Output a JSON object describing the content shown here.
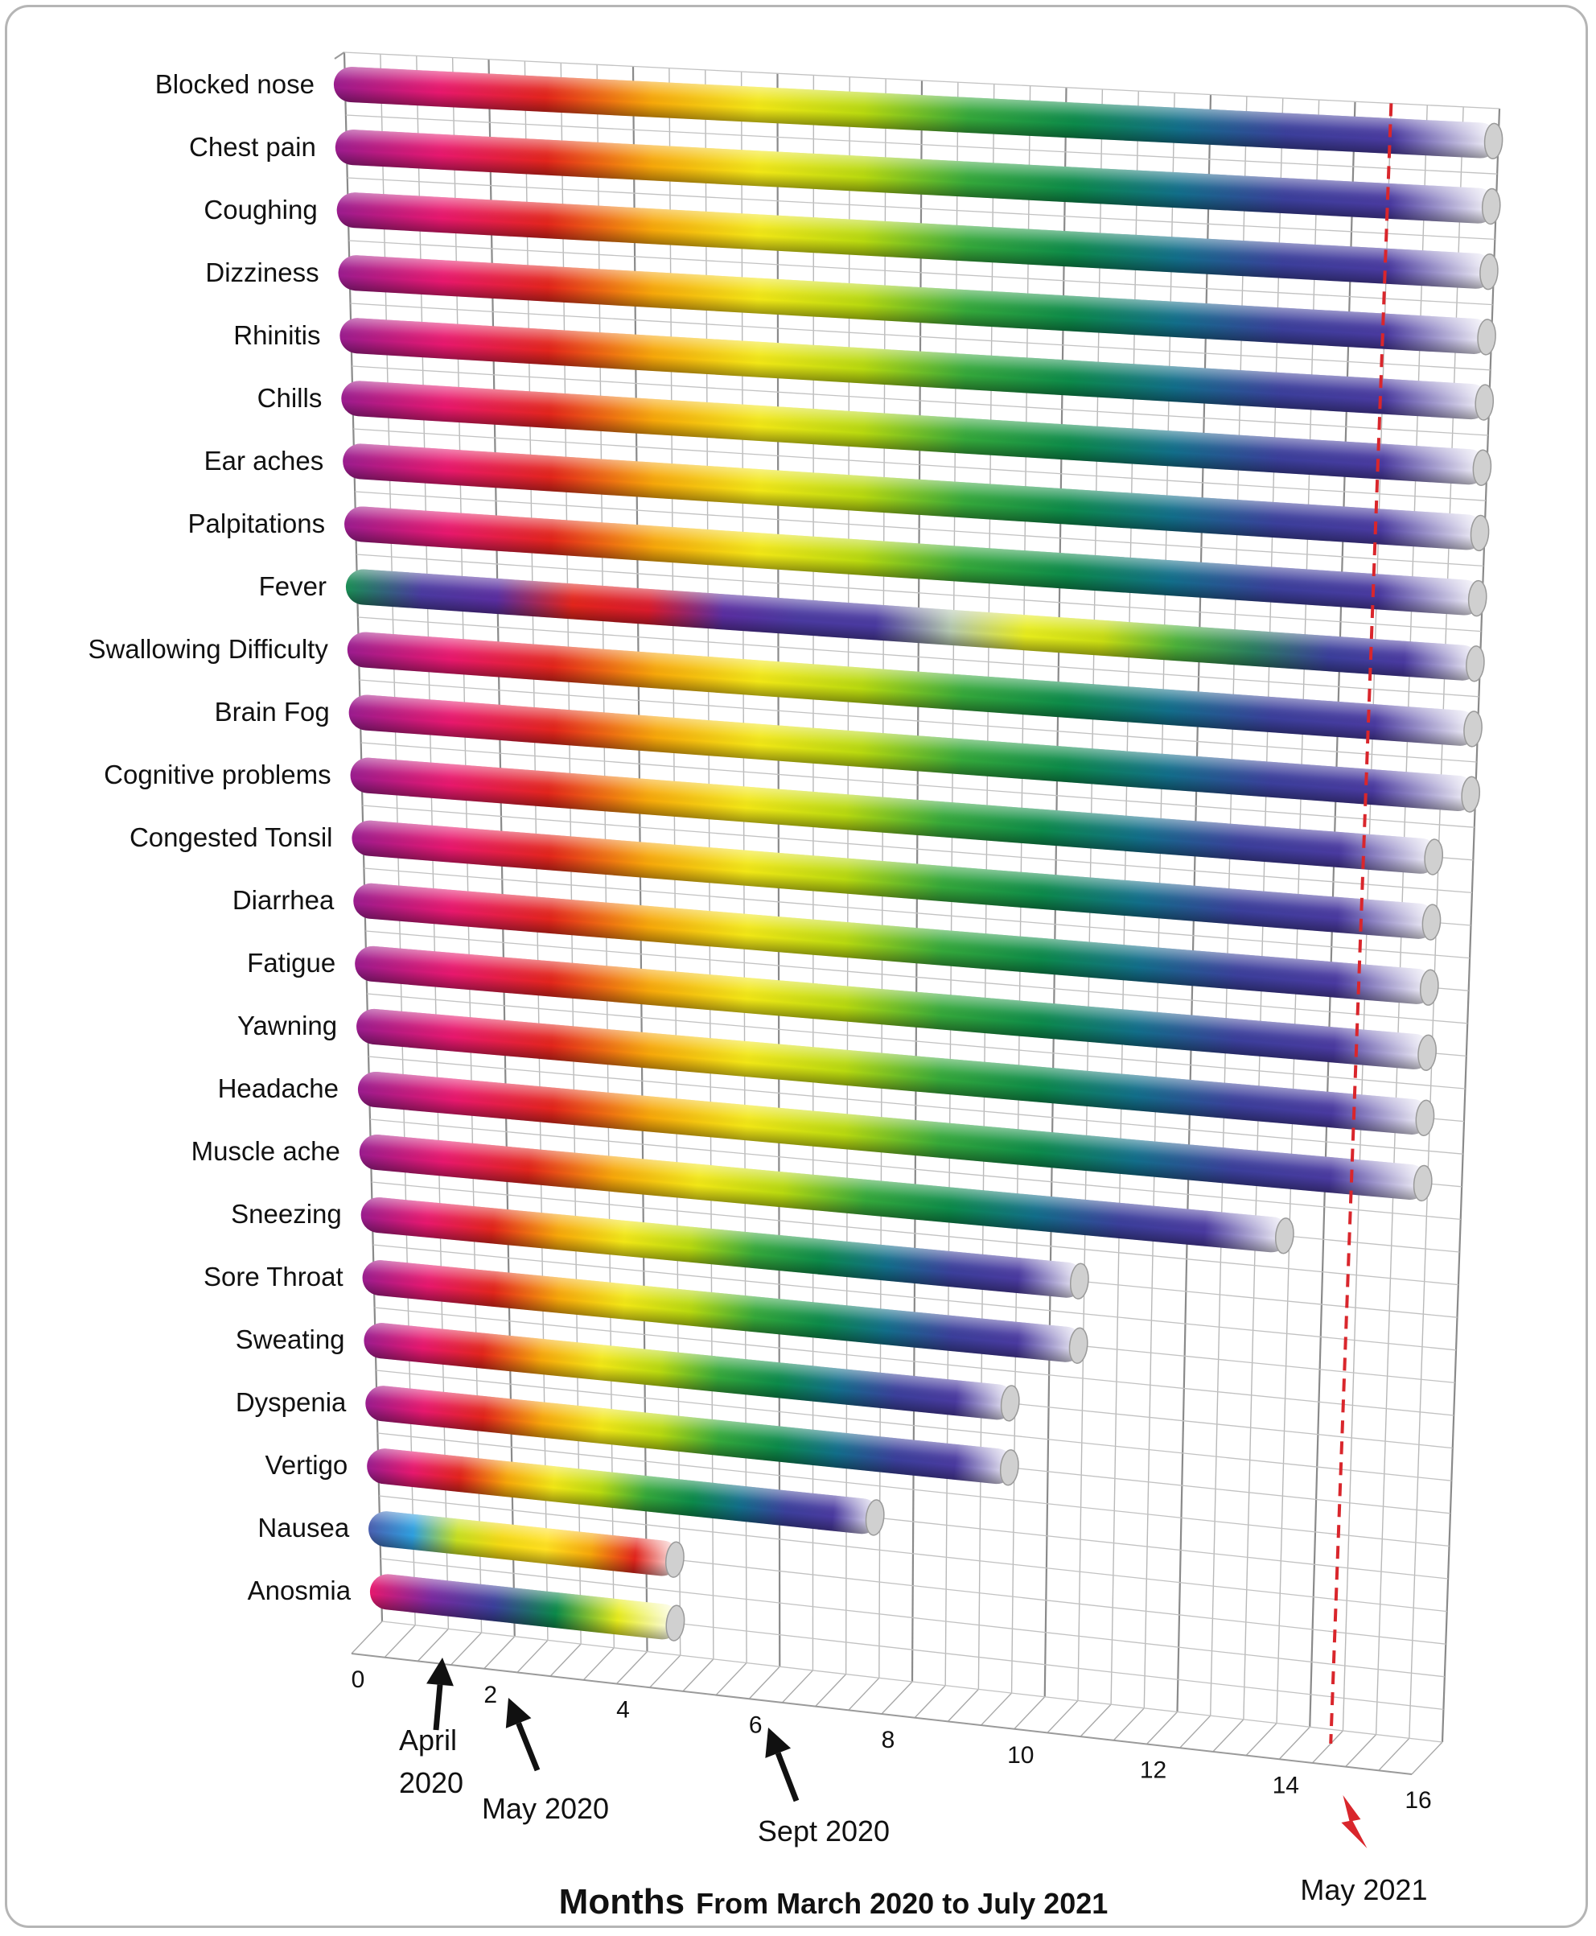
{
  "chart_data": {
    "type": "bar",
    "orientation": "horizontal",
    "categories": [
      "Blocked nose",
      "Chest pain",
      "Coughing",
      "Dizziness",
      "Rhinitis",
      "Chills",
      "Ear aches",
      "Palpitations",
      "Fever",
      "Swallowing Difficulty",
      "Brain Fog",
      "Cognitive problems",
      "Congested Tonsil",
      "Diarrhea",
      "Fatigue",
      "Yawning",
      "Headache",
      "Muscle ache",
      "Sneezing",
      "Sore Throat",
      "Sweating",
      "Dyspenia",
      "Vertigo",
      "Nausea",
      "Anosmia"
    ],
    "values": [
      16,
      16,
      16,
      16,
      16,
      16,
      16,
      16,
      16,
      16,
      16,
      15.5,
      15.5,
      15.5,
      15.5,
      15.5,
      15.5,
      13.5,
      10.5,
      10.5,
      9.5,
      9.5,
      7.5,
      4.5,
      4.5
    ],
    "xlim": [
      0,
      16
    ],
    "xticks": [
      "0",
      "2",
      "4",
      "6",
      "8",
      "10",
      "12",
      "14",
      "16"
    ],
    "title_main": "Months",
    "title_sub": "From March 2020 to July 2021",
    "grid": true,
    "reference_line": {
      "x": 14.5,
      "label": "May 2021",
      "color": "#d9262c"
    },
    "annotations": [
      {
        "x": 1,
        "label_line1": "April",
        "label_line2": "2020"
      },
      {
        "x": 2,
        "label_line1": "May 2020",
        "label_line2": ""
      },
      {
        "x": 6,
        "label_line1": "Sept 2020",
        "label_line2": ""
      }
    ],
    "bar_gradient": [
      "#9b1c8f",
      "#e8186e",
      "#e3251c",
      "#f7a70a",
      "#f2e716",
      "#b8d90f",
      "#35a83a",
      "#0c8a4a",
      "#126e8a",
      "#3b3f9b",
      "#4a3aa0",
      "#ffffff"
    ],
    "fever_gradient": [
      "#1a8f55",
      "#4a3aa0",
      "#5a2ea0",
      "#e3251c",
      "#d91b2c",
      "#5a2ea0",
      "#4a3aa0",
      "#4a3aa0",
      "#b5c8b0",
      "#e7ec1d",
      "#c8dc12",
      "#4ab03a",
      "#2a7d60",
      "#3b3f9b",
      "#4a3aa0",
      "#ffffff"
    ],
    "nausea_gradient": [
      "#4a5fb0",
      "#2fa0e0",
      "#c8e020",
      "#f5d912",
      "#ffe020",
      "#f7a70a",
      "#e3251c",
      "#ffffff"
    ],
    "anosmia_gradient": [
      "#e8186e",
      "#7a2aa0",
      "#3b3f9b",
      "#0c8a4a",
      "#e7ec1d",
      "#ffffff"
    ]
  }
}
